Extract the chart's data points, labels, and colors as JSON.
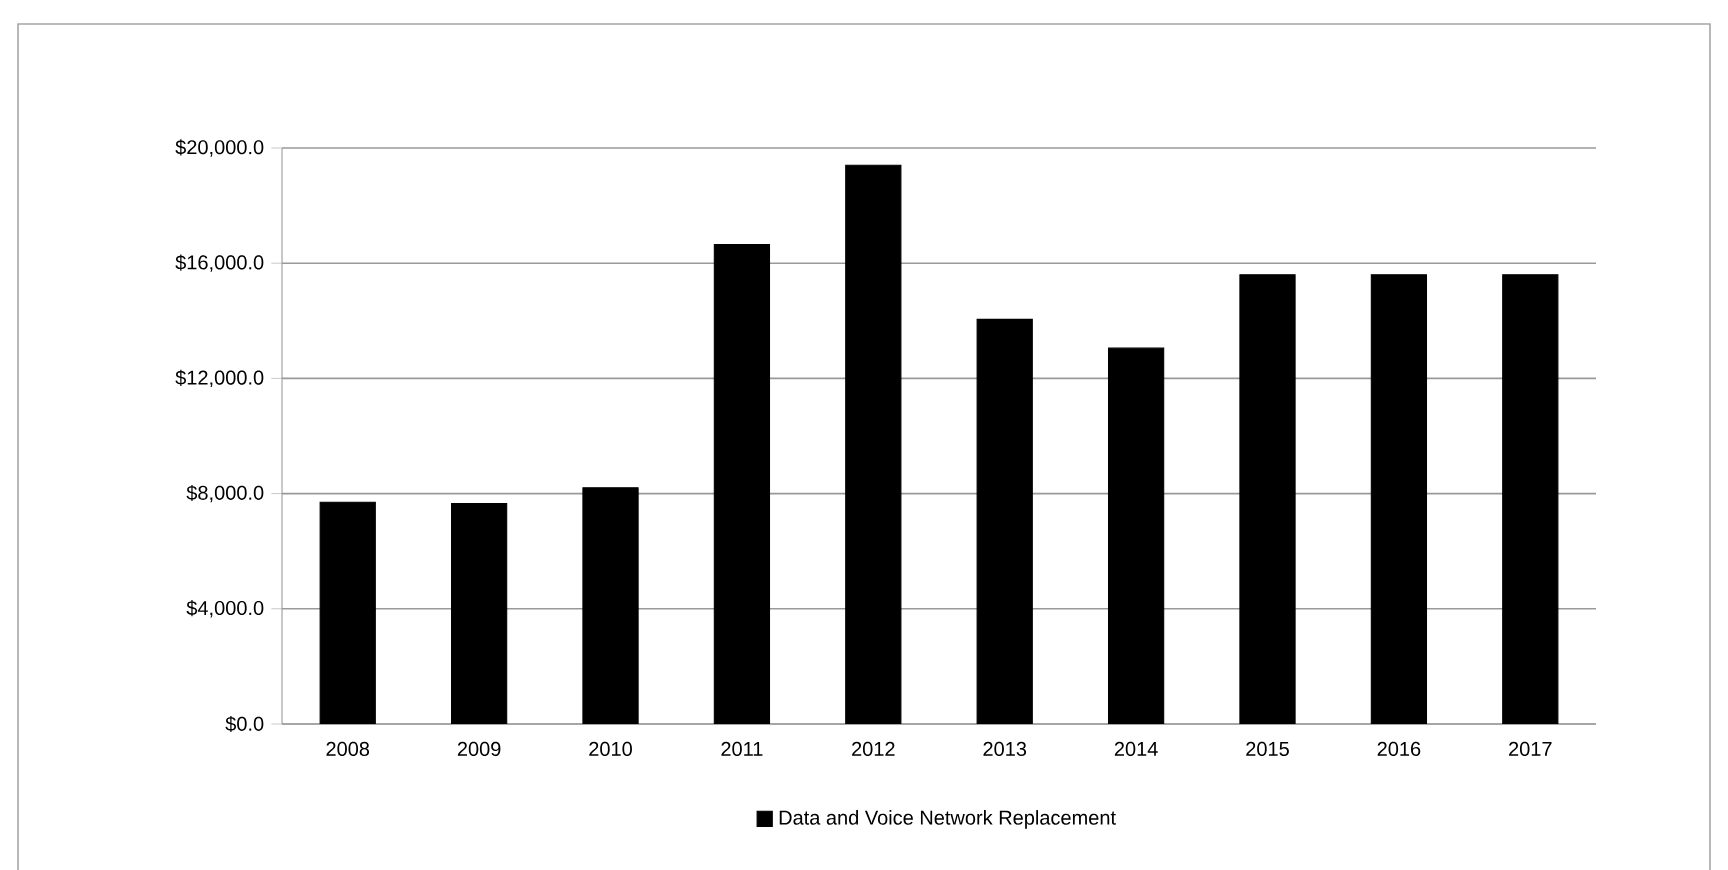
{
  "chart_data": {
    "type": "bar",
    "categories": [
      "2008",
      "2009",
      "2010",
      "2011",
      "2012",
      "2013",
      "2014",
      "2015",
      "2016",
      "2017"
    ],
    "series": [
      {
        "name": "Data and Voice Network Replacement",
        "color": "#000000",
        "values": [
          7700,
          7650,
          8200,
          16650,
          19400,
          14050,
          13050,
          15600,
          15600,
          15600
        ]
      }
    ],
    "ylim": [
      0,
      20000
    ],
    "yticks": [
      {
        "value": 0,
        "label": "$0.0"
      },
      {
        "value": 4000,
        "label": "$4,000.0"
      },
      {
        "value": 8000,
        "label": "$8,000.0"
      },
      {
        "value": 12000,
        "label": "$12,000.0"
      },
      {
        "value": 16000,
        "label": "$16,000.0"
      },
      {
        "value": 20000,
        "label": "$20,000.0"
      }
    ],
    "grid": "y",
    "legend": "bottom"
  }
}
